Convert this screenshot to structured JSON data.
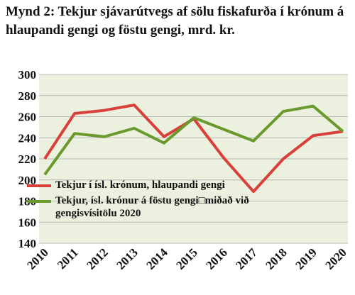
{
  "chart_data": {
    "type": "line",
    "title": "Mynd 2: Tekjur sjávarútvegs af sölu fiskafurða í krónum á hlaupandi gengi og föstu gengi, mrd. kr.",
    "categories": [
      "2010",
      "2011",
      "2012",
      "2013",
      "2014",
      "2015",
      "2016",
      "2017",
      "2018",
      "2019",
      "2020"
    ],
    "series": [
      {
        "name": "Tekjur í ísl. krónum, hlaupandi gengi",
        "color": "#d9403a",
        "values": [
          220,
          263,
          266,
          271,
          241,
          258,
          221,
          189,
          220,
          242,
          246
        ]
      },
      {
        "name": "Tekjur, ísl. krónur á föstu gengi□miðað við gengisvísitölu 2020",
        "color": "#6a9a2e",
        "values": [
          205,
          244,
          241,
          249,
          235,
          259,
          248,
          237,
          265,
          270,
          246
        ]
      }
    ],
    "ylim": [
      140,
      300
    ],
    "yticks": [
      140,
      160,
      180,
      200,
      220,
      240,
      260,
      280,
      300
    ],
    "grid": true,
    "background": "#ebf1de"
  }
}
